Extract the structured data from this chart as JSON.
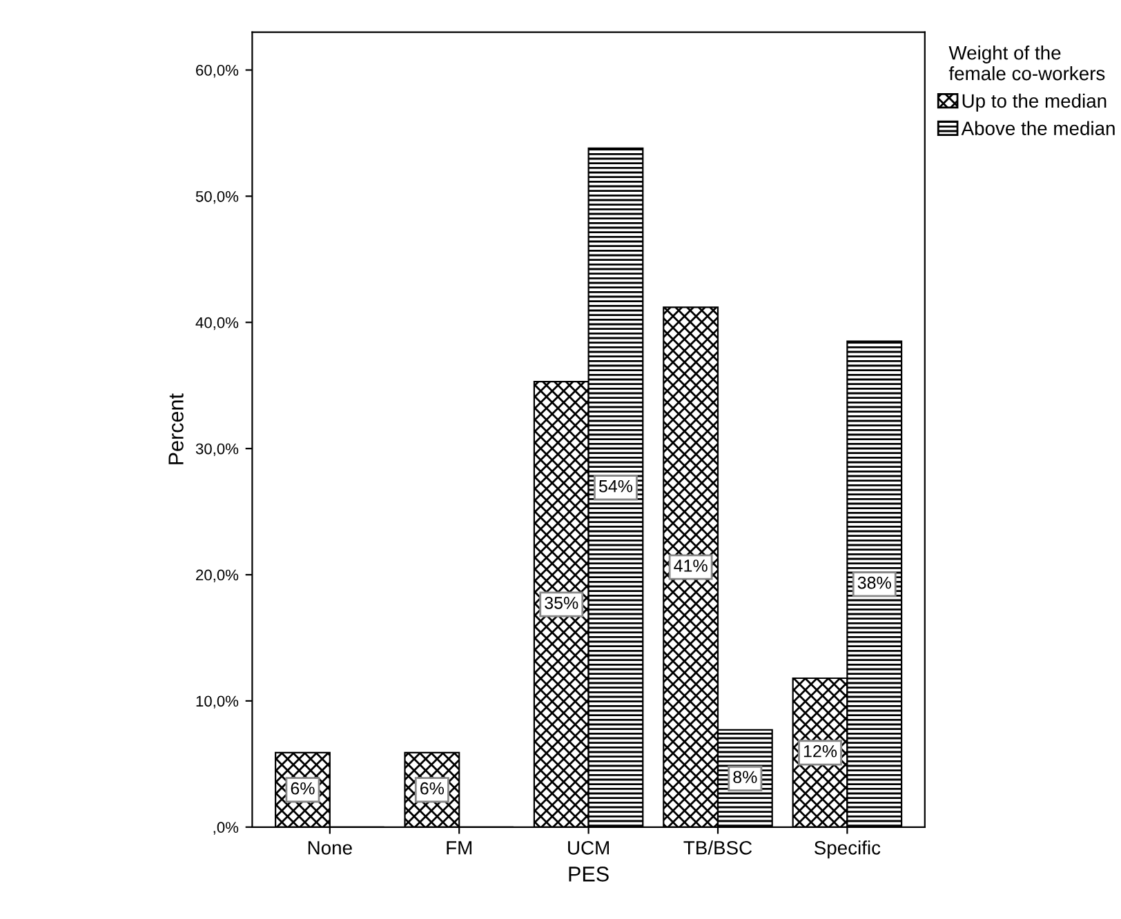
{
  "chart_data": {
    "type": "bar",
    "xlabel": "PES",
    "ylabel": "Percent",
    "legend_title": "Weight of the\nfemale co-workers",
    "categories": [
      "None",
      "FM",
      "UCM",
      "TB/BSC",
      "Specific"
    ],
    "series": [
      {
        "name": "Up to the median",
        "color": "#000000",
        "values": [
          5.9,
          5.9,
          35.3,
          41.2,
          11.8
        ],
        "value_labels": [
          "6%",
          "6%",
          "35%",
          "41%",
          "12%"
        ]
      },
      {
        "name": "Above the median",
        "color": "#000000",
        "values": [
          0,
          0,
          53.8,
          7.7,
          38.5
        ],
        "value_labels": [
          null,
          null,
          "54%",
          "8%",
          "38%"
        ]
      }
    ],
    "ylim": [
      0,
      63
    ],
    "yticks": [
      {
        "value": 0,
        "label": ",0%"
      },
      {
        "value": 10,
        "label": "10,0%"
      },
      {
        "value": 20,
        "label": "20,0%"
      },
      {
        "value": 30,
        "label": "30,0%"
      },
      {
        "value": 40,
        "label": "40,0%"
      },
      {
        "value": 50,
        "label": "50,0%"
      },
      {
        "value": 60,
        "label": "60,0%"
      }
    ],
    "grid": false,
    "legend": "top right"
  }
}
